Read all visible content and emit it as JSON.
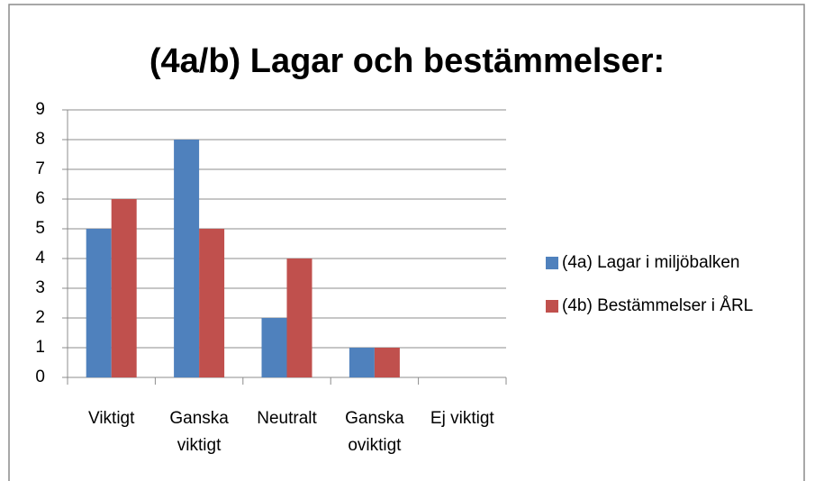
{
  "chart_data": {
    "type": "bar",
    "title": "(4a/b) Lagar och bestämmelser:",
    "categories": [
      "Viktigt",
      "Ganska viktigt",
      "Neutralt",
      "Ganska oviktigt",
      "Ej viktigt"
    ],
    "series": [
      {
        "name": "(4a) Lagar i miljöbalken",
        "color": "#4f81bd",
        "values": [
          5,
          8,
          2,
          1,
          0
        ]
      },
      {
        "name": "(4b) Bestämmelser i ÅRL",
        "color": "#c0504d",
        "values": [
          6,
          5,
          4,
          1,
          0
        ]
      }
    ],
    "ylim": [
      0,
      9
    ],
    "yticks": [
      0,
      1,
      2,
      3,
      4,
      5,
      6,
      7,
      8,
      9
    ],
    "grid": true,
    "legend": "right"
  }
}
